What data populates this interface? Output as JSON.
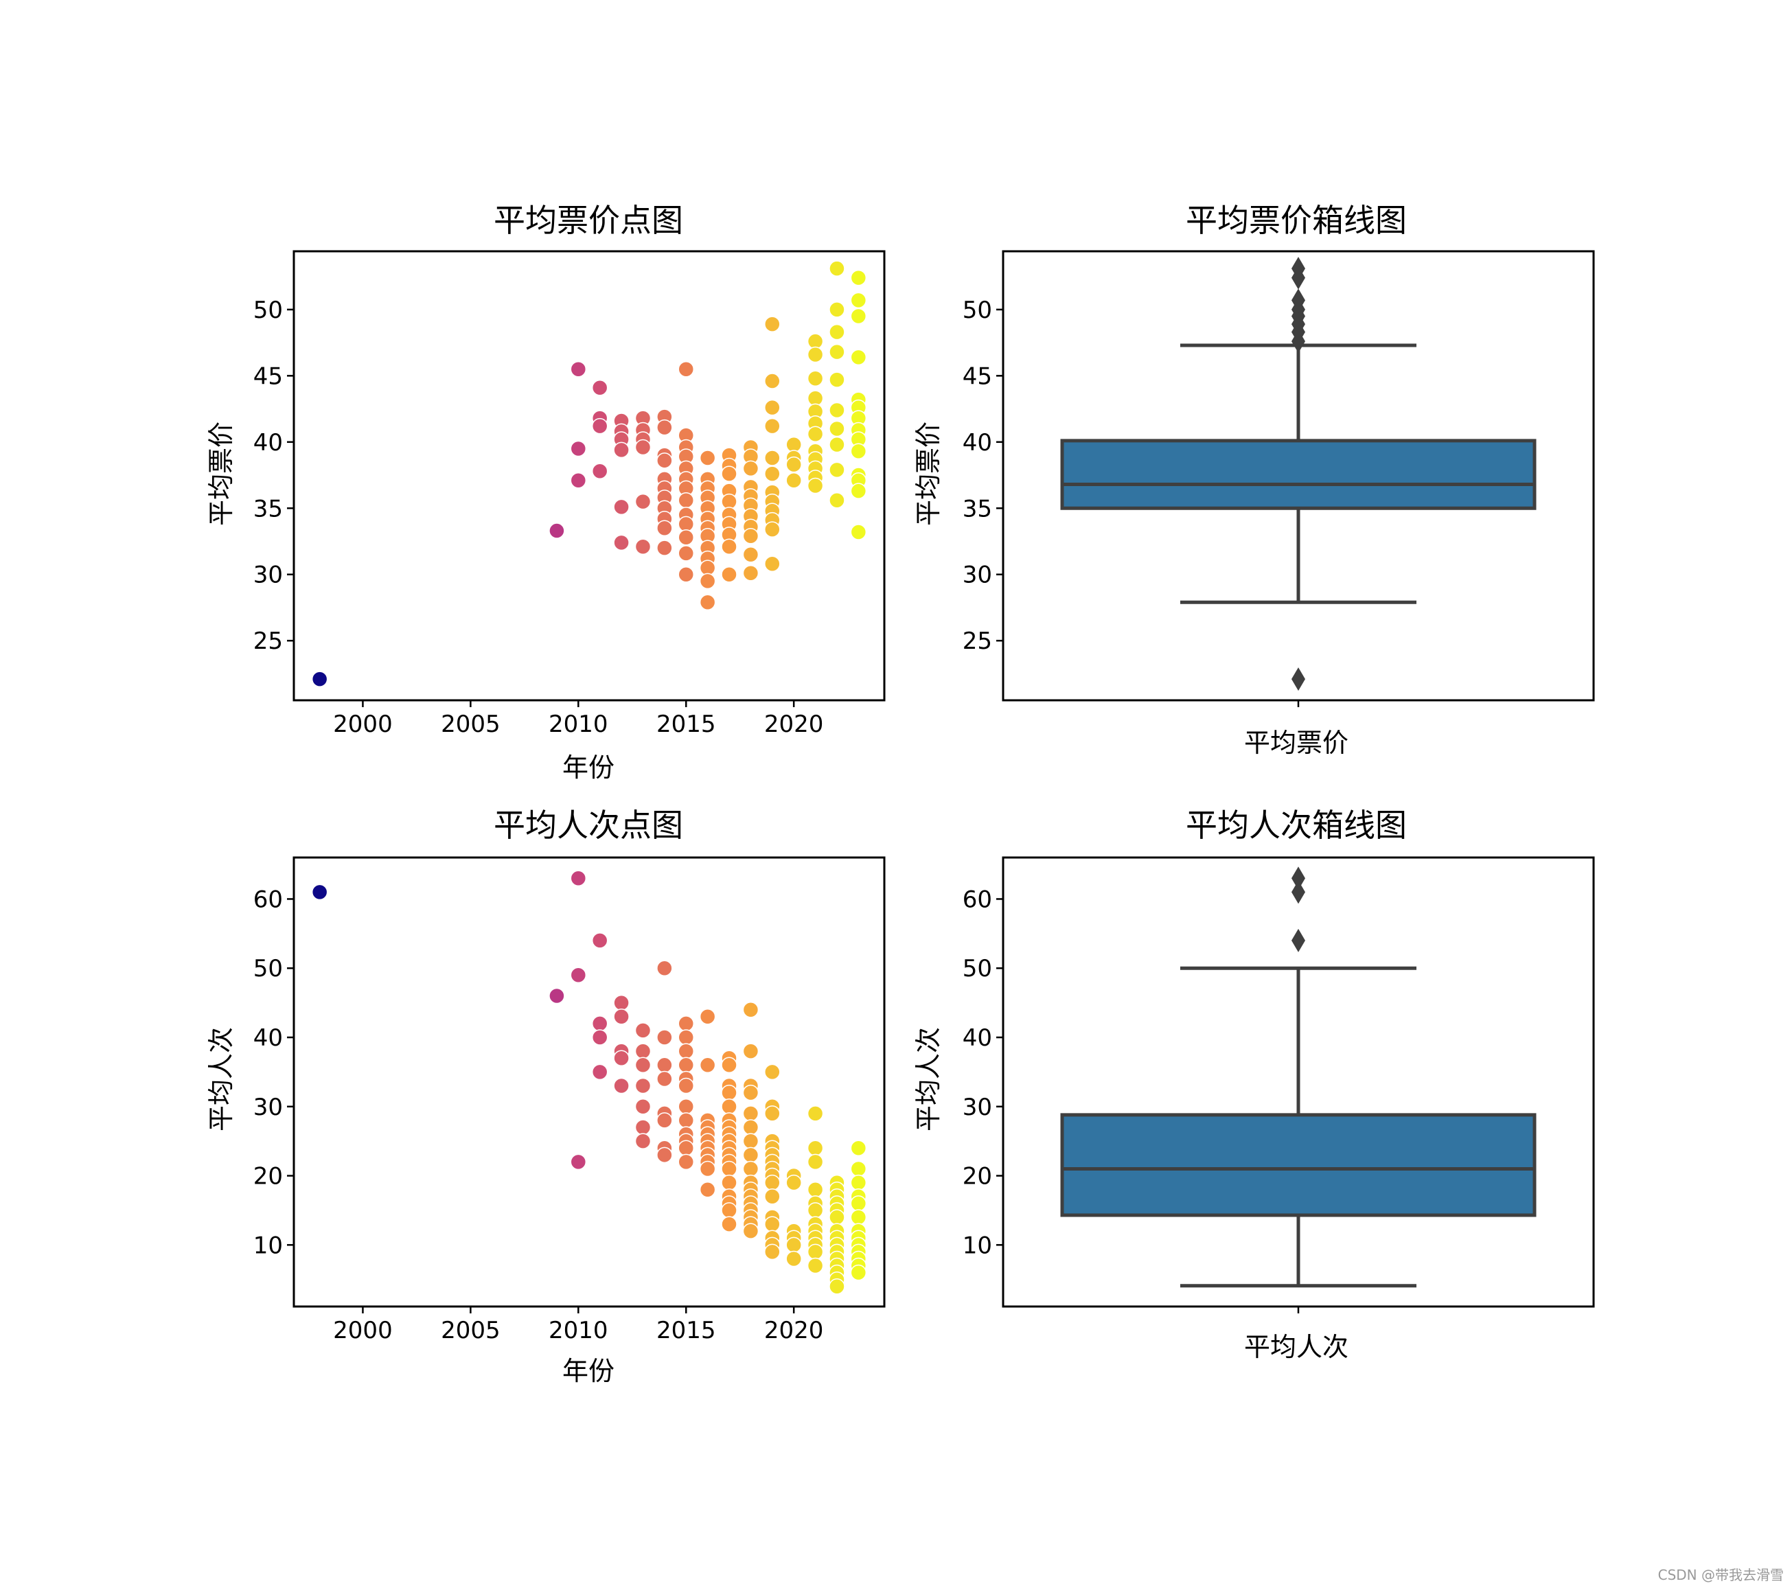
{
  "chart_data": [
    {
      "id": "price_scatter",
      "type": "scatter",
      "title": "平均票价点图",
      "xlabel": "年份",
      "ylabel": "平均票价",
      "xlim": [
        1996.8,
        2024.2
      ],
      "ylim": [
        20.5,
        54.4
      ],
      "xticks": [
        2000,
        2005,
        2010,
        2015,
        2020
      ],
      "yticks": [
        25,
        30,
        35,
        40,
        45,
        50
      ],
      "colormap": "plasma",
      "points": [
        [
          1998,
          22.1
        ],
        [
          2009,
          33.3
        ],
        [
          2010,
          45.5
        ],
        [
          2010,
          39.5
        ],
        [
          2010,
          37.1
        ],
        [
          2011,
          44.1
        ],
        [
          2011,
          41.8
        ],
        [
          2011,
          41.2
        ],
        [
          2011,
          37.8
        ],
        [
          2012,
          41.6
        ],
        [
          2012,
          40.8
        ],
        [
          2012,
          40.2
        ],
        [
          2012,
          39.4
        ],
        [
          2012,
          35.1
        ],
        [
          2012,
          32.4
        ],
        [
          2013,
          41.8
        ],
        [
          2013,
          40.9
        ],
        [
          2013,
          40.2
        ],
        [
          2013,
          39.6
        ],
        [
          2013,
          35.5
        ],
        [
          2013,
          32.1
        ],
        [
          2014,
          41.9
        ],
        [
          2014,
          41.1
        ],
        [
          2014,
          39.0
        ],
        [
          2014,
          38.6
        ],
        [
          2014,
          37.2
        ],
        [
          2014,
          36.5
        ],
        [
          2014,
          35.8
        ],
        [
          2014,
          35.0
        ],
        [
          2014,
          34.2
        ],
        [
          2014,
          33.5
        ],
        [
          2014,
          32.0
        ],
        [
          2015,
          45.5
        ],
        [
          2015,
          40.5
        ],
        [
          2015,
          39.6
        ],
        [
          2015,
          38.9
        ],
        [
          2015,
          38.0
        ],
        [
          2015,
          37.2
        ],
        [
          2015,
          36.5
        ],
        [
          2015,
          35.6
        ],
        [
          2015,
          34.5
        ],
        [
          2015,
          33.8
        ],
        [
          2015,
          32.8
        ],
        [
          2015,
          31.6
        ],
        [
          2015,
          30.0
        ],
        [
          2016,
          38.8
        ],
        [
          2016,
          37.2
        ],
        [
          2016,
          36.5
        ],
        [
          2016,
          35.8
        ],
        [
          2016,
          35.0
        ],
        [
          2016,
          34.2
        ],
        [
          2016,
          33.5
        ],
        [
          2016,
          32.9
        ],
        [
          2016,
          32.0
        ],
        [
          2016,
          31.2
        ],
        [
          2016,
          30.5
        ],
        [
          2016,
          29.5
        ],
        [
          2016,
          27.9
        ],
        [
          2017,
          39.0
        ],
        [
          2017,
          38.2
        ],
        [
          2017,
          37.6
        ],
        [
          2017,
          36.3
        ],
        [
          2017,
          35.5
        ],
        [
          2017,
          34.5
        ],
        [
          2017,
          33.8
        ],
        [
          2017,
          33.0
        ],
        [
          2017,
          32.1
        ],
        [
          2017,
          30.0
        ],
        [
          2018,
          39.6
        ],
        [
          2018,
          38.9
        ],
        [
          2018,
          38.0
        ],
        [
          2018,
          36.6
        ],
        [
          2018,
          35.9
        ],
        [
          2018,
          35.2
        ],
        [
          2018,
          34.4
        ],
        [
          2018,
          33.6
        ],
        [
          2018,
          32.9
        ],
        [
          2018,
          31.5
        ],
        [
          2018,
          30.1
        ],
        [
          2019,
          48.9
        ],
        [
          2019,
          44.6
        ],
        [
          2019,
          42.6
        ],
        [
          2019,
          41.2
        ],
        [
          2019,
          38.8
        ],
        [
          2019,
          37.6
        ],
        [
          2019,
          36.2
        ],
        [
          2019,
          35.5
        ],
        [
          2019,
          34.8
        ],
        [
          2019,
          34.1
        ],
        [
          2019,
          33.4
        ],
        [
          2019,
          30.8
        ],
        [
          2020,
          39.8
        ],
        [
          2020,
          38.8
        ],
        [
          2020,
          38.3
        ],
        [
          2020,
          37.1
        ],
        [
          2021,
          47.6
        ],
        [
          2021,
          46.6
        ],
        [
          2021,
          44.8
        ],
        [
          2021,
          43.3
        ],
        [
          2021,
          42.3
        ],
        [
          2021,
          41.4
        ],
        [
          2021,
          40.6
        ],
        [
          2021,
          39.3
        ],
        [
          2021,
          38.7
        ],
        [
          2021,
          38.0
        ],
        [
          2021,
          37.3
        ],
        [
          2021,
          36.7
        ],
        [
          2022,
          53.1
        ],
        [
          2022,
          50.0
        ],
        [
          2022,
          48.3
        ],
        [
          2022,
          46.8
        ],
        [
          2022,
          44.7
        ],
        [
          2022,
          42.4
        ],
        [
          2022,
          41.0
        ],
        [
          2022,
          39.8
        ],
        [
          2022,
          37.9
        ],
        [
          2022,
          35.6
        ],
        [
          2023,
          52.4
        ],
        [
          2023,
          50.7
        ],
        [
          2023,
          49.5
        ],
        [
          2023,
          46.4
        ],
        [
          2023,
          43.2
        ],
        [
          2023,
          42.6
        ],
        [
          2023,
          41.8
        ],
        [
          2023,
          40.9
        ],
        [
          2023,
          40.2
        ],
        [
          2023,
          39.3
        ],
        [
          2023,
          37.5
        ],
        [
          2023,
          37.1
        ],
        [
          2023,
          36.3
        ],
        [
          2023,
          33.2
        ]
      ]
    },
    {
      "id": "price_box",
      "type": "box",
      "title": "平均票价箱线图",
      "xlabel": "平均票价",
      "ylabel": "平均票价",
      "ylim": [
        20.5,
        54.4
      ],
      "yticks": [
        25,
        30,
        35,
        40,
        45,
        50
      ],
      "color": "#3274a1",
      "q1": 35.0,
      "median": 36.8,
      "q3": 40.1,
      "whisker_low": 27.9,
      "whisker_high": 47.3,
      "outliers": [
        53.1,
        52.4,
        50.7,
        50.0,
        49.5,
        48.9,
        48.3,
        47.6,
        22.1
      ]
    },
    {
      "id": "visits_scatter",
      "type": "scatter",
      "title": "平均人次点图",
      "xlabel": "年份",
      "ylabel": "平均人次",
      "xlim": [
        1996.8,
        2024.2
      ],
      "ylim": [
        1.1,
        66.0
      ],
      "xticks": [
        2000,
        2005,
        2010,
        2015,
        2020
      ],
      "yticks": [
        10,
        20,
        30,
        40,
        50,
        60
      ],
      "colormap": "plasma",
      "points": [
        [
          1998,
          61
        ],
        [
          2009,
          46
        ],
        [
          2010,
          63
        ],
        [
          2010,
          49
        ],
        [
          2010,
          22
        ],
        [
          2011,
          54
        ],
        [
          2011,
          42
        ],
        [
          2011,
          40
        ],
        [
          2011,
          35
        ],
        [
          2012,
          45
        ],
        [
          2012,
          43
        ],
        [
          2012,
          38
        ],
        [
          2012,
          37
        ],
        [
          2012,
          33
        ],
        [
          2013,
          41
        ],
        [
          2013,
          38
        ],
        [
          2013,
          36
        ],
        [
          2013,
          33
        ],
        [
          2013,
          30
        ],
        [
          2013,
          27
        ],
        [
          2013,
          25
        ],
        [
          2014,
          50
        ],
        [
          2014,
          40
        ],
        [
          2014,
          36
        ],
        [
          2014,
          34
        ],
        [
          2014,
          29
        ],
        [
          2014,
          28
        ],
        [
          2014,
          24
        ],
        [
          2014,
          23
        ],
        [
          2015,
          42
        ],
        [
          2015,
          40
        ],
        [
          2015,
          38
        ],
        [
          2015,
          36
        ],
        [
          2015,
          34
        ],
        [
          2015,
          33
        ],
        [
          2015,
          30
        ],
        [
          2015,
          28
        ],
        [
          2015,
          26
        ],
        [
          2015,
          25
        ],
        [
          2015,
          24
        ],
        [
          2015,
          22
        ],
        [
          2016,
          43
        ],
        [
          2016,
          36
        ],
        [
          2016,
          28
        ],
        [
          2016,
          27
        ],
        [
          2016,
          26
        ],
        [
          2016,
          25
        ],
        [
          2016,
          24
        ],
        [
          2016,
          23
        ],
        [
          2016,
          22
        ],
        [
          2016,
          21
        ],
        [
          2016,
          18
        ],
        [
          2017,
          37
        ],
        [
          2017,
          36
        ],
        [
          2017,
          33
        ],
        [
          2017,
          32
        ],
        [
          2017,
          30
        ],
        [
          2017,
          28
        ],
        [
          2017,
          27
        ],
        [
          2017,
          26
        ],
        [
          2017,
          25
        ],
        [
          2017,
          24
        ],
        [
          2017,
          23
        ],
        [
          2017,
          22
        ],
        [
          2017,
          21
        ],
        [
          2017,
          19
        ],
        [
          2017,
          17
        ],
        [
          2017,
          16
        ],
        [
          2017,
          15
        ],
        [
          2017,
          13
        ],
        [
          2018,
          44
        ],
        [
          2018,
          38
        ],
        [
          2018,
          33
        ],
        [
          2018,
          32
        ],
        [
          2018,
          29
        ],
        [
          2018,
          27
        ],
        [
          2018,
          25
        ],
        [
          2018,
          23
        ],
        [
          2018,
          21
        ],
        [
          2018,
          19
        ],
        [
          2018,
          18
        ],
        [
          2018,
          17
        ],
        [
          2018,
          16
        ],
        [
          2018,
          15
        ],
        [
          2018,
          14
        ],
        [
          2018,
          13
        ],
        [
          2018,
          12
        ],
        [
          2019,
          35
        ],
        [
          2019,
          30
        ],
        [
          2019,
          29
        ],
        [
          2019,
          25
        ],
        [
          2019,
          24
        ],
        [
          2019,
          23
        ],
        [
          2019,
          22
        ],
        [
          2019,
          21
        ],
        [
          2019,
          20
        ],
        [
          2019,
          19
        ],
        [
          2019,
          17
        ],
        [
          2019,
          14
        ],
        [
          2019,
          13
        ],
        [
          2019,
          11
        ],
        [
          2019,
          10
        ],
        [
          2019,
          9
        ],
        [
          2020,
          20
        ],
        [
          2020,
          19
        ],
        [
          2020,
          12
        ],
        [
          2020,
          11
        ],
        [
          2020,
          10
        ],
        [
          2020,
          8
        ],
        [
          2021,
          29
        ],
        [
          2021,
          24
        ],
        [
          2021,
          22
        ],
        [
          2021,
          18
        ],
        [
          2021,
          16
        ],
        [
          2021,
          15
        ],
        [
          2021,
          13
        ],
        [
          2021,
          12
        ],
        [
          2021,
          11
        ],
        [
          2021,
          10
        ],
        [
          2021,
          9
        ],
        [
          2021,
          7
        ],
        [
          2022,
          19
        ],
        [
          2022,
          18
        ],
        [
          2022,
          17
        ],
        [
          2022,
          16
        ],
        [
          2022,
          15
        ],
        [
          2022,
          14
        ],
        [
          2022,
          12
        ],
        [
          2022,
          11
        ],
        [
          2022,
          10
        ],
        [
          2022,
          9
        ],
        [
          2022,
          8
        ],
        [
          2022,
          7
        ],
        [
          2022,
          6
        ],
        [
          2022,
          5
        ],
        [
          2022,
          4
        ],
        [
          2023,
          24
        ],
        [
          2023,
          21
        ],
        [
          2023,
          19
        ],
        [
          2023,
          17
        ],
        [
          2023,
          16
        ],
        [
          2023,
          14
        ],
        [
          2023,
          12
        ],
        [
          2023,
          11
        ],
        [
          2023,
          10
        ],
        [
          2023,
          9
        ],
        [
          2023,
          8
        ],
        [
          2023,
          7
        ],
        [
          2023,
          6
        ]
      ]
    },
    {
      "id": "visits_box",
      "type": "box",
      "title": "平均人次箱线图",
      "xlabel": "平均人次",
      "ylabel": "平均人次",
      "ylim": [
        1.1,
        66.0
      ],
      "yticks": [
        10,
        20,
        30,
        40,
        50,
        60
      ],
      "color": "#3274a1",
      "q1": 14.3,
      "median": 21.0,
      "q3": 28.8,
      "whisker_low": 4.1,
      "whisker_high": 50.0,
      "outliers": [
        63,
        61,
        54
      ]
    }
  ],
  "watermark": "CSDN @带我去滑雪"
}
